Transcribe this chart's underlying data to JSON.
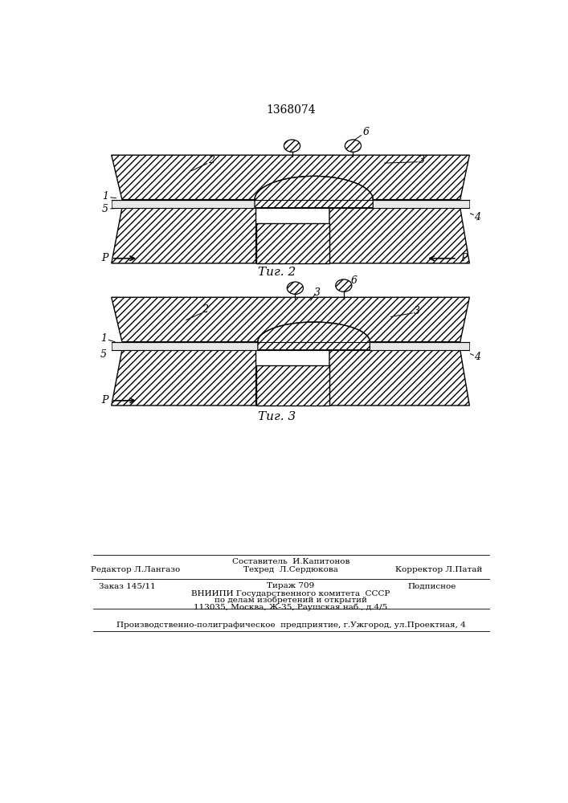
{
  "title": "1368074",
  "fig2_label": "Τиг. 2",
  "fig3_label": "Τиг. 3",
  "bg_color": "#ffffff",
  "line_color": "#000000"
}
